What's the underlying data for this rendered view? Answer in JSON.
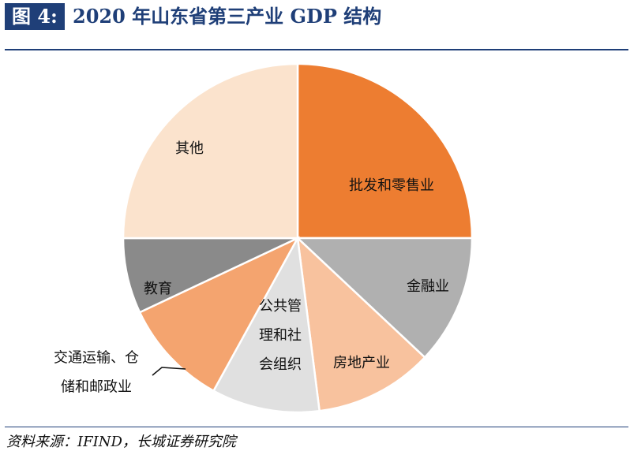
{
  "header": {
    "figure_label": "图 4:",
    "title": "2020 年山东省第三产业 GDP 结构"
  },
  "footer": {
    "source": "资料来源：IFIND，长城证券研究院"
  },
  "colors": {
    "title_blue": "#1f3f78",
    "批发和零售业": "#ed7d31",
    "金融业": "#b0b0b0",
    "房地产业": "#f8c29e",
    "公共管理和社会组织": "#e0e0e0",
    "交通运输、仓储和邮政业": "#f4a46f",
    "教育": "#8a8a8a",
    "其他": "#fbe3cd"
  },
  "chart_data": {
    "type": "pie",
    "title": "",
    "slices": [
      {
        "label": "批发和零售业",
        "value": 25.0
      },
      {
        "label": "金融业",
        "value": 12.0
      },
      {
        "label": "房地产业",
        "value": 11.0
      },
      {
        "label": "公共管理和社会组织",
        "value": 10.0
      },
      {
        "label": "交通运输、仓储和邮政业",
        "value": 10.0
      },
      {
        "label": "教育",
        "value": 7.0
      },
      {
        "label": "其他",
        "value": 25.0
      }
    ]
  }
}
